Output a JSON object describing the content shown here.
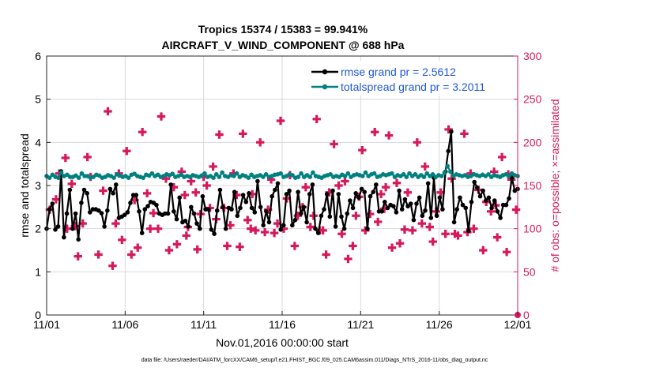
{
  "chart_data": {
    "type": "line",
    "title": "Tropics 15374 / 15383 = 99.941%",
    "subtitle": "AIRCRAFT_V_WIND_COMPONENT @ 688 hPa",
    "xlabel": "Nov.01,2016 00:00:00 start",
    "ylabel": "rmse and totalspread",
    "y2label": "# of obs: o=possible; ×=assimilated",
    "footnote": "data file: /Users/raeder/DAI/ATM_forcXX/CAM6_setup/f.e21.FHIST_BGC.f09_025.CAM6assim.011/Diags_NTrS_2016-11/obs_diag_output.nc",
    "xlim": [
      0,
      30
    ],
    "ylim": [
      0,
      6
    ],
    "y2lim": [
      0,
      300
    ],
    "x_tick_labels": [
      "11/01",
      "11/06",
      "11/11",
      "11/16",
      "11/21",
      "11/26",
      "12/01"
    ],
    "x_tick_days": [
      0,
      5,
      10,
      15,
      20,
      25,
      30
    ],
    "y_ticks": [
      0,
      1,
      2,
      3,
      4,
      5,
      6
    ],
    "y2_ticks": [
      0,
      50,
      100,
      150,
      200,
      250,
      300
    ],
    "legend_position": "top-right",
    "grid": true,
    "colors": {
      "rmse": "#000000",
      "spread": "#008080",
      "obs": "#d6185c",
      "right_axis": "#d6185c",
      "legend_text": "#1f57d6"
    },
    "series": [
      {
        "name": "rmse grand pr = 2.5612",
        "axis": "left",
        "values": [
          2.0,
          2.45,
          2.58,
          1.98,
          2.05,
          3.33,
          1.8,
          2.35,
          2.9,
          2.0,
          2.35,
          1.75,
          2.6,
          2.9,
          2.82,
          2.38,
          2.45,
          2.45,
          2.42,
          2.36,
          2.05,
          2.42,
          2.92,
          2.82,
          3.02,
          2.25,
          2.28,
          2.32,
          2.38,
          2.6,
          2.78,
          2.78,
          2.4,
          1.9,
          2.45,
          2.52,
          2.62,
          2.6,
          2.55,
          2.35,
          2.32,
          2.35,
          2.35,
          3.02,
          2.4,
          2.22,
          2.72,
          2.15,
          2.18,
          2.05,
          2.5,
          2.35,
          2.12,
          2.0,
          2.75,
          2.45,
          2.45,
          1.98,
          1.88,
          2.42,
          2.9,
          2.5,
          2.0,
          2.48,
          2.45,
          2.85,
          2.3,
          2.48,
          2.78,
          2.62,
          2.82,
          2.48,
          2.38,
          3.1,
          2.5,
          2.08,
          2.4,
          2.15,
          2.75,
          2.9,
          3.05,
          1.98,
          2.08,
          2.8,
          2.88,
          2.08,
          2.2,
          2.85,
          2.35,
          2.5,
          2.15,
          2.8,
          3.02,
          2.0,
          1.9,
          2.3,
          2.45,
          2.8,
          2.28,
          2.88,
          2.05,
          2.8,
          2.28,
          2.0,
          2.35,
          2.65,
          2.48,
          2.82,
          2.72,
          2.92,
          2.85,
          2.0,
          2.75,
          2.85,
          3.02,
          2.4,
          2.4,
          2.62,
          2.48,
          2.55,
          2.52,
          2.38,
          2.88,
          2.45,
          2.68,
          2.52,
          2.58,
          2.2,
          2.58,
          2.72,
          2.3,
          2.42,
          3.05,
          2.25,
          3.18,
          2.3,
          2.72,
          2.45,
          3.32,
          3.8,
          4.25,
          2.15,
          2.45,
          2.72,
          2.55,
          2.48,
          1.95,
          2.62,
          3.08,
          2.95,
          2.75,
          2.88,
          2.65,
          2.72,
          2.48,
          2.65,
          2.4,
          2.25,
          2.55,
          2.55,
          2.7,
          3.18,
          2.88,
          2.92
        ]
      },
      {
        "name": "totalspread grand pr = 3.2011",
        "axis": "left",
        "values": [
          3.22,
          3.18,
          3.25,
          3.2,
          3.18,
          3.3,
          3.22,
          3.25,
          3.2,
          3.2,
          3.23,
          3.18,
          3.28,
          3.22,
          3.22,
          3.18,
          3.2,
          3.25,
          3.23,
          3.18,
          3.2,
          3.24,
          3.22,
          3.18,
          3.26,
          3.23,
          3.2,
          3.22,
          3.18,
          3.25,
          3.27,
          3.22,
          3.2,
          3.18,
          3.25,
          3.23,
          3.28,
          3.22,
          3.25,
          3.2,
          3.22,
          3.26,
          3.24,
          3.27,
          3.2,
          3.22,
          3.25,
          3.2,
          3.22,
          3.2,
          3.24,
          3.22,
          3.2,
          3.23,
          3.28,
          3.2,
          3.22,
          3.18,
          3.26,
          3.2,
          3.3,
          3.22,
          3.2,
          3.24,
          3.22,
          3.28,
          3.2,
          3.24,
          3.22,
          3.18,
          3.25,
          3.2,
          3.22,
          3.24,
          3.2,
          3.26,
          3.2,
          3.22,
          3.25,
          3.26,
          3.28,
          3.2,
          3.22,
          3.26,
          3.24,
          3.18,
          3.2,
          3.28,
          3.2,
          3.24,
          3.2,
          3.3,
          3.22,
          3.2,
          3.18,
          3.22,
          3.24,
          3.26,
          3.2,
          3.22,
          3.2,
          3.25,
          3.22,
          3.28,
          3.2,
          3.24,
          3.26,
          3.24,
          3.22,
          3.3,
          3.22,
          3.26,
          3.28,
          3.2,
          3.22,
          3.26,
          3.24,
          3.26,
          3.28,
          3.2,
          3.24,
          3.22,
          3.26,
          3.2,
          3.28,
          3.22,
          3.26,
          3.2,
          3.24,
          3.2,
          3.28,
          3.22,
          3.26,
          3.2,
          3.24,
          3.22,
          3.3,
          3.45,
          3.32,
          3.22,
          3.26,
          3.24,
          3.22,
          3.24,
          3.2,
          3.22,
          3.26,
          3.24,
          3.22,
          3.25,
          3.22,
          3.26,
          3.2,
          3.24,
          3.22,
          3.2,
          3.24,
          3.26,
          3.22,
          3.28,
          3.24,
          3.22
        ]
      },
      {
        "name": "obs possible/assimilated",
        "axis": "right",
        "marker": "plus",
        "points": [
          [
            0.2,
            122
          ],
          [
            0.6,
            134
          ],
          [
            0.8,
            164
          ],
          [
            1.2,
            182
          ],
          [
            1.3,
            100
          ],
          [
            1.6,
            152
          ],
          [
            1.8,
            103
          ],
          [
            2.0,
            68
          ],
          [
            2.3,
            106
          ],
          [
            2.6,
            183
          ],
          [
            2.8,
            160
          ],
          [
            3.3,
            70
          ],
          [
            3.6,
            144
          ],
          [
            3.9,
            236
          ],
          [
            4.2,
            57
          ],
          [
            4.4,
            106
          ],
          [
            4.6,
            164
          ],
          [
            4.8,
            87
          ],
          [
            5.1,
            190
          ],
          [
            5.4,
            70
          ],
          [
            5.6,
            133
          ],
          [
            5.8,
            78
          ],
          [
            6.1,
            212
          ],
          [
            6.4,
            141
          ],
          [
            6.6,
            100
          ],
          [
            6.8,
            118
          ],
          [
            7.1,
            100
          ],
          [
            7.3,
            230
          ],
          [
            7.6,
            158
          ],
          [
            7.8,
            75
          ],
          [
            8.1,
            148
          ],
          [
            8.3,
            82
          ],
          [
            8.6,
            166
          ],
          [
            8.8,
            139
          ],
          [
            8.9,
            92
          ],
          [
            9.0,
            102
          ],
          [
            9.2,
            155
          ],
          [
            9.5,
            142
          ],
          [
            9.6,
            76
          ],
          [
            9.8,
            117
          ],
          [
            10.0,
            160
          ],
          [
            10.2,
            150
          ],
          [
            10.4,
            124
          ],
          [
            10.6,
            172
          ],
          [
            10.8,
            111
          ],
          [
            11.0,
            209
          ],
          [
            11.3,
            124
          ],
          [
            11.5,
            80
          ],
          [
            11.7,
            104
          ],
          [
            11.9,
            164
          ],
          [
            12.1,
            139
          ],
          [
            12.3,
            79
          ],
          [
            12.5,
            210
          ],
          [
            12.8,
            110
          ],
          [
            13.0,
            100
          ],
          [
            13.1,
            140
          ],
          [
            13.3,
            98
          ],
          [
            13.6,
            200
          ],
          [
            13.9,
            96
          ],
          [
            14.1,
            122
          ],
          [
            14.3,
            157
          ],
          [
            14.5,
            95
          ],
          [
            14.7,
            106
          ],
          [
            14.9,
            225
          ],
          [
            15.1,
            100
          ],
          [
            15.3,
            135
          ],
          [
            15.5,
            162
          ],
          [
            15.8,
            80
          ],
          [
            16.0,
            115
          ],
          [
            16.3,
            125
          ],
          [
            16.5,
            148
          ],
          [
            16.8,
            102
          ],
          [
            17.0,
            115
          ],
          [
            17.2,
            227
          ],
          [
            17.4,
            98
          ],
          [
            17.6,
            98
          ],
          [
            17.8,
            70
          ],
          [
            18.0,
            142
          ],
          [
            18.3,
            198
          ],
          [
            18.6,
            150
          ],
          [
            18.8,
            94
          ],
          [
            19.0,
            155
          ],
          [
            19.2,
            65
          ],
          [
            19.5,
            80
          ],
          [
            19.7,
            115
          ],
          [
            19.9,
            137
          ],
          [
            20.1,
            191
          ],
          [
            20.3,
            98
          ],
          [
            20.6,
            117
          ],
          [
            20.9,
            212
          ],
          [
            21.1,
            108
          ],
          [
            21.3,
            140
          ],
          [
            21.5,
            123
          ],
          [
            21.6,
            148
          ],
          [
            21.8,
            208
          ],
          [
            22.0,
            78
          ],
          [
            22.3,
            153
          ],
          [
            22.5,
            83
          ],
          [
            22.8,
            99
          ],
          [
            23.0,
            142
          ],
          [
            23.3,
            98
          ],
          [
            23.6,
            200
          ],
          [
            23.9,
            106
          ],
          [
            24.1,
            172
          ],
          [
            24.4,
            102
          ],
          [
            24.6,
            85
          ],
          [
            24.8,
            120
          ],
          [
            25.1,
            142
          ],
          [
            25.4,
            94
          ],
          [
            25.6,
            215
          ],
          [
            25.8,
            158
          ],
          [
            26.0,
            94
          ],
          [
            26.2,
            92
          ],
          [
            26.6,
            210
          ],
          [
            26.8,
            96
          ],
          [
            27.0,
            164
          ],
          [
            27.2,
            100
          ],
          [
            27.5,
            145
          ],
          [
            27.8,
            75
          ],
          [
            28.0,
            131
          ],
          [
            28.3,
            120
          ],
          [
            28.5,
            166
          ],
          [
            28.6,
            127
          ],
          [
            28.7,
            90
          ],
          [
            29.0,
            183
          ],
          [
            29.3,
            73
          ],
          [
            29.4,
            163
          ],
          [
            29.6,
            157
          ],
          [
            29.9,
            122
          ]
        ]
      }
    ]
  }
}
